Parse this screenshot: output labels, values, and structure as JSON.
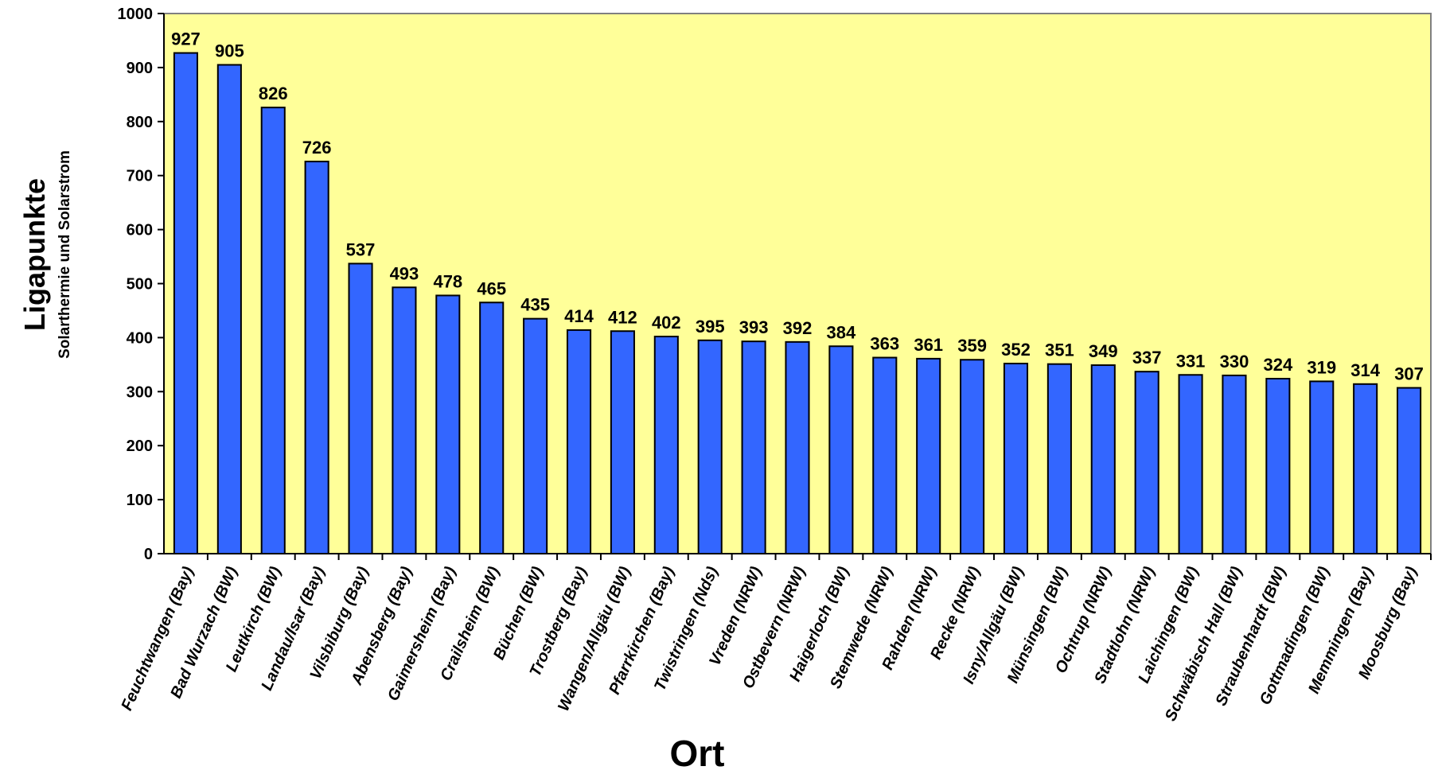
{
  "chart_data": {
    "type": "bar",
    "title": "",
    "xlabel": "Ort",
    "ylabel": "Ligapunkte",
    "ylabel_sub": "Solarthermie und Solarstrom",
    "ylim": [
      0,
      1000
    ],
    "yticks": [
      0,
      100,
      200,
      300,
      400,
      500,
      600,
      700,
      800,
      900,
      1000
    ],
    "grid": false,
    "colors": {
      "plot_background": "#ffff99",
      "bar": "#3366ff",
      "bar_edge": "#000000"
    },
    "categories": [
      "Feuchtwangen (Bay)",
      "Bad Wurzach (BW)",
      "Leutkirch (BW)",
      "Landau/Isar (Bay)",
      "Vilsbiburg (Bay)",
      "Abensberg (Bay)",
      "Gaimersheim (Bay)",
      "Crailsheim (BW)",
      "Büchen (BW)",
      "Trostberg (Bay)",
      "Wangen/Allgäu (BW)",
      "Pfarrkirchen (Bay)",
      "Twistringen (Nds)",
      "Vreden (NRW)",
      "Ostbevern (NRW)",
      "Haigerloch (BW)",
      "Stemwede (NRW)",
      "Rahden (NRW)",
      "Recke (NRW)",
      "Isny/Allgäu (BW)",
      "Münsingen (BW)",
      "Ochtrup (NRW)",
      "Stadtlohn (NRW)",
      "Laichingen (BW)",
      "Schwäbisch Hall (BW)",
      "Straubenhardt (BW)",
      "Gottmadingen (BW)",
      "Memmingen (Bay)",
      "Moosburg (Bay)"
    ],
    "values": [
      927,
      905,
      826,
      726,
      537,
      493,
      478,
      465,
      435,
      414,
      412,
      402,
      395,
      393,
      392,
      384,
      363,
      361,
      359,
      352,
      351,
      349,
      337,
      331,
      330,
      324,
      319,
      314,
      307
    ]
  }
}
